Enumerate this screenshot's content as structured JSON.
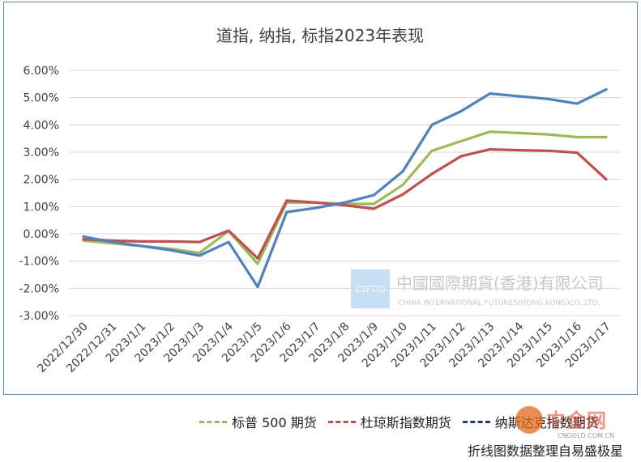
{
  "chart_data": {
    "type": "line",
    "title": "道指, 纳指, 标指2023年表现",
    "categories": [
      "2022/12/30",
      "2022/12/31",
      "2023/1/1",
      "2023/1/2",
      "2023/1/3",
      "2023/1/4",
      "2023/1/5",
      "2023/1/6",
      "2023/1/7",
      "2023/1/8",
      "2023/1/9",
      "2023/1/10",
      "2023/1/11",
      "2023/1/12",
      "2023/1/13",
      "2023/1/14",
      "2023/1/15",
      "2023/1/16",
      "2023/1/17"
    ],
    "y_ticks": [
      "6.00%",
      "5.00%",
      "4.00%",
      "3.00%",
      "2.00%",
      "1.00%",
      "0.00%",
      "-1.00%",
      "-2.00%",
      "-3.00%"
    ],
    "ylim": [
      -3,
      6
    ],
    "y_unit": "%",
    "grid": true,
    "legend_position": "bottom",
    "series": [
      {
        "name": "标普 500 期货",
        "color": "#9bbb59",
        "values": [
          -0.25,
          -0.35,
          -0.45,
          -0.55,
          -0.7,
          0.1,
          -1.1,
          1.15,
          1.15,
          1.1,
          1.1,
          1.8,
          3.05,
          3.4,
          3.75,
          3.7,
          3.65,
          3.55,
          3.55
        ]
      },
      {
        "name": "杜琼斯指数期货",
        "color": "#c0504d",
        "values": [
          -0.2,
          -0.25,
          -0.28,
          -0.28,
          -0.3,
          0.12,
          -0.9,
          1.22,
          1.15,
          1.05,
          0.92,
          1.45,
          2.2,
          2.85,
          3.1,
          3.07,
          3.05,
          2.98,
          2.0
        ]
      },
      {
        "name": "纳斯达克指数期货",
        "color": "#4f81bd",
        "values": [
          -0.1,
          -0.3,
          -0.45,
          -0.6,
          -0.8,
          -0.3,
          -1.95,
          0.8,
          0.95,
          1.15,
          1.42,
          2.3,
          4.0,
          4.5,
          5.15,
          5.05,
          4.95,
          4.78,
          5.3
        ]
      }
    ]
  },
  "watermark": {
    "logo_text": "CIFCO",
    "company_cn": "中國國際期貨(香港)有限公司",
    "company_en": "CHINA INTERNATIONAL FUTURES(HONG KONG)CO.,LTD."
  },
  "brand": {
    "name": "中金网",
    "domain": "CNGOLD.COM.CN"
  },
  "caption": "折线图数据整理自易盛极星"
}
